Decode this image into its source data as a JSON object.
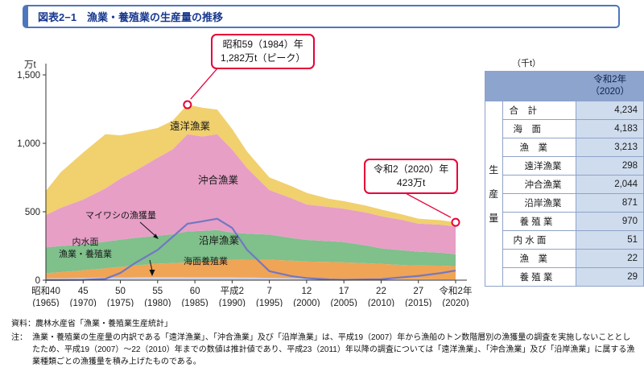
{
  "header": {
    "title": "図表2−1　漁業・養殖業の生産量の推移"
  },
  "chart_data": {
    "type": "area",
    "title": "漁業・養殖業の生産量の推移",
    "unit_label": "万t",
    "ylim": [
      0,
      1500
    ],
    "legend_position": "in-chart labels",
    "grid": false,
    "y_ticks": [
      {
        "v": 0,
        "label": "0"
      },
      {
        "v": 500,
        "label": "500"
      },
      {
        "v": 1000,
        "label": "1,000"
      },
      {
        "v": 1500,
        "label": "1,500"
      }
    ],
    "x_ticks": [
      {
        "year": 1965,
        "label": "昭和40",
        "sub": "(1965)"
      },
      {
        "year": 1970,
        "label": "45",
        "sub": "(1970)"
      },
      {
        "year": 1975,
        "label": "50",
        "sub": "(1975)"
      },
      {
        "year": 1980,
        "label": "55",
        "sub": "(1980)"
      },
      {
        "year": 1985,
        "label": "60",
        "sub": "(1985)"
      },
      {
        "year": 1990,
        "label": "平成2",
        "sub": "(1990)"
      },
      {
        "year": 1995,
        "label": "7",
        "sub": "(1995)"
      },
      {
        "year": 2000,
        "label": "12",
        "sub": "(2000)"
      },
      {
        "year": 2005,
        "label": "17",
        "sub": "(2005)"
      },
      {
        "year": 2010,
        "label": "22",
        "sub": "(2010)"
      },
      {
        "year": 2015,
        "label": "27",
        "sub": "(2015)"
      },
      {
        "year": 2020,
        "label": "令和2年",
        "sub": "(2020)"
      }
    ],
    "x": [
      1965,
      1967,
      1970,
      1973,
      1975,
      1977,
      1980,
      1982,
      1984,
      1986,
      1988,
      1990,
      1992,
      1995,
      1998,
      2000,
      2003,
      2005,
      2008,
      2010,
      2013,
      2015,
      2018,
      2020
    ],
    "series": [
      {
        "name": "内水面漁業・養殖業",
        "label_line1": "内水面",
        "label_line2": "漁業・養殖業",
        "color": "#c9d0e6",
        "values": [
          13,
          14,
          17,
          19,
          20,
          21,
          22,
          22,
          21,
          21,
          21,
          21,
          20,
          17,
          15,
          13,
          11,
          10,
          9,
          8,
          7,
          7,
          6,
          5
        ]
      },
      {
        "name": "海面養殖業",
        "color": "#f0a455",
        "values": [
          38,
          45,
          55,
          68,
          77,
          86,
          99,
          103,
          109,
          115,
          125,
          127,
          130,
          132,
          128,
          123,
          122,
          120,
          115,
          111,
          103,
          100,
          100,
          97
        ]
      },
      {
        "name": "沿岸漁業",
        "color": "#7fc08b",
        "values": [
          189,
          190,
          189,
          194,
          199,
          202,
          204,
          210,
          226,
          224,
          220,
          199,
          190,
          184,
          165,
          158,
          152,
          148,
          130,
          113,
          108,
          101,
          95,
          87
        ]
      },
      {
        "name": "沖合漁業",
        "color": "#e79fc6",
        "values": [
          236,
          280,
          328,
          390,
          446,
          490,
          570,
          620,
          710,
          690,
          700,
          608,
          480,
          326,
          290,
          259,
          250,
          244,
          240,
          236,
          220,
          205,
          204,
          204
        ]
      },
      {
        "name": "遠洋漁業",
        "color": "#f1d06e",
        "values": [
          177,
          260,
          343,
          396,
          316,
          280,
          217,
          210,
          216,
          210,
          180,
          150,
          120,
          92,
          88,
          85,
          60,
          55,
          50,
          48,
          40,
          36,
          33,
          30
        ]
      }
    ],
    "line": {
      "name": "マイワシの漁獲量",
      "color": "#7377c2",
      "values": [
        1,
        1,
        2,
        10,
        53,
        126,
        221,
        316,
        412,
        430,
        449,
        382,
        222,
        66,
        29,
        15,
        5,
        3,
        5,
        7,
        22,
        31,
        52,
        70
      ]
    },
    "annotations": {
      "peak": {
        "year": 1984,
        "value": 1282,
        "line1": "昭和59（1984）年",
        "line2": "1,282万t（ピーク）"
      },
      "latest": {
        "year": 2020,
        "value": 423,
        "line1": "令和2（2020）年",
        "line2": "423万t"
      }
    }
  },
  "table": {
    "unit": "（千t）",
    "header_line1": "令和2年",
    "header_line2": "（2020）",
    "side_label": "生産量",
    "rows": [
      {
        "label": "合　計",
        "value": "4,234",
        "indent": 0
      },
      {
        "label": "海　面",
        "value": "4,183",
        "indent": 1
      },
      {
        "label": "漁　業",
        "value": "3,213",
        "indent": 2
      },
      {
        "label": "遠洋漁業",
        "value": "298",
        "indent": 3
      },
      {
        "label": "沖合漁業",
        "value": "2,044",
        "indent": 3
      },
      {
        "label": "沿岸漁業",
        "value": "871",
        "indent": 3
      },
      {
        "label": "養 殖 業",
        "value": "970",
        "indent": 2
      },
      {
        "label": "内 水 面",
        "value": "51",
        "indent": 1
      },
      {
        "label": "漁　業",
        "value": "22",
        "indent": 2
      },
      {
        "label": "養 殖 業",
        "value": "29",
        "indent": 2
      }
    ]
  },
  "footer": {
    "source": "資料：農林水産省「漁業・養殖業生産統計」",
    "note_label": "注：",
    "note": "漁業・養殖業の生産量の内訳である「遠洋漁業」、「沖合漁業」及び「沿岸漁業」は、平成19（2007）年から漁船のトン数階層別の漁獲量の調査を実施しないこととしたため、平成19（2007）～22（2010）年までの数値は推計値であり、平成23（2011）年以降の調査については「遠洋漁業」、「沖合漁業」及び「沿岸漁業」に属する漁業種類ごとの漁獲量を積み上げたものである。"
  }
}
